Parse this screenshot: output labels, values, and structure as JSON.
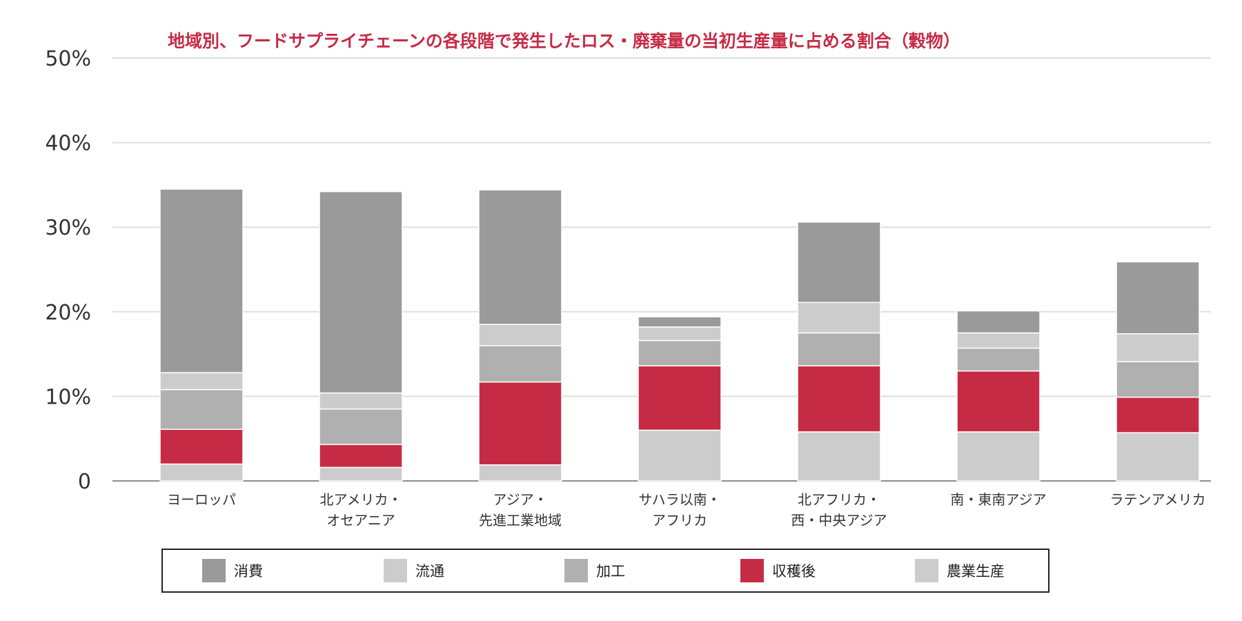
{
  "chart_data": {
    "type": "bar",
    "stacked": true,
    "title": "地域別、フードサプライチェーンの各段階で発生したロス・廃棄量の当初生産量に占める割合（穀物）",
    "xlabel": "",
    "ylabel": "",
    "ylim": [
      0,
      50
    ],
    "y_ticks": [
      {
        "value": 0,
        "label": "0"
      },
      {
        "value": 10,
        "label": "10%"
      },
      {
        "value": 20,
        "label": "20%"
      },
      {
        "value": 30,
        "label": "30%"
      },
      {
        "value": 40,
        "label": "40%"
      },
      {
        "value": 50,
        "label": "50%"
      }
    ],
    "grid": true,
    "legend_position": "bottom",
    "categories": [
      [
        "ヨーロッパ"
      ],
      [
        "北アメリカ・",
        "オセアニア"
      ],
      [
        "アジア・",
        "先進工業地域"
      ],
      [
        "サハラ以南・",
        "アフリカ"
      ],
      [
        "北アフリカ・",
        "西・中央アジア"
      ],
      [
        "南・東南アジア"
      ],
      [
        "ラテンアメリカ"
      ]
    ],
    "series": [
      {
        "name": "農業生産",
        "color": "#cccccc",
        "values": [
          2.0,
          1.6,
          1.9,
          6.0,
          5.8,
          5.8,
          5.7
        ]
      },
      {
        "name": "収穫後",
        "color": "#c62b45",
        "values": [
          4.1,
          2.7,
          9.8,
          7.6,
          7.8,
          7.2,
          4.2
        ]
      },
      {
        "name": "加工",
        "color": "#b0b0b0",
        "values": [
          4.7,
          4.2,
          4.3,
          3.0,
          3.9,
          2.7,
          4.2
        ]
      },
      {
        "name": "流通",
        "color": "#cccccc",
        "values": [
          2.0,
          1.9,
          2.5,
          1.6,
          3.6,
          1.8,
          3.3
        ]
      },
      {
        "name": "消費",
        "color": "#9a9a9a",
        "values": [
          21.7,
          23.8,
          15.9,
          1.2,
          9.5,
          2.6,
          8.5
        ]
      }
    ],
    "legend_order": [
      "消費",
      "流通",
      "加工",
      "収穫後",
      "農業生産"
    ]
  }
}
